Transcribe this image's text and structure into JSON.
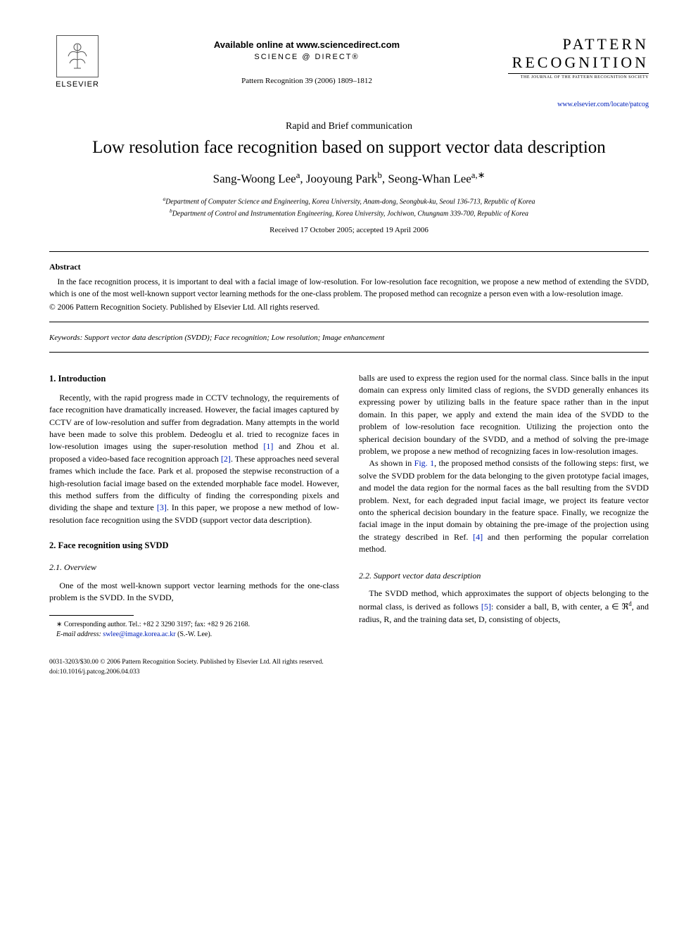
{
  "header": {
    "elsevier_label": "ELSEVIER",
    "available_online": "Available online at www.sciencedirect.com",
    "science_direct": "SCIENCE @ DIRECT®",
    "journal_ref": "Pattern Recognition 39 (2006) 1809–1812",
    "journal_title": "PATTERN RECOGNITION",
    "journal_subtitle": "THE JOURNAL OF THE PATTERN RECOGNITION SOCIETY",
    "journal_url": "www.elsevier.com/locate/patcog"
  },
  "communication_type": "Rapid and Brief communication",
  "title": "Low resolution face recognition based on support vector data description",
  "authors_html": "Sang-Woong Lee<sup>a</sup>, Jooyoung Park<sup>b</sup>, Seong-Whan Lee<sup>a,∗</sup>",
  "affiliations": {
    "a": "Department of Computer Science and Engineering, Korea University, Anam-dong, Seongbuk-ku, Seoul 136-713, Republic of Korea",
    "b": "Department of Control and Instrumentation Engineering, Korea University, Jochiwon, Chungnam 339-700, Republic of Korea"
  },
  "dates": "Received 17 October 2005; accepted 19 April 2006",
  "abstract": {
    "heading": "Abstract",
    "text": "In the face recognition process, it is important to deal with a facial image of low-resolution. For low-resolution face recognition, we propose a new method of extending the SVDD, which is one of the most well-known support vector learning methods for the one-class problem. The proposed method can recognize a person even with a low-resolution image.",
    "copyright": "© 2006 Pattern Recognition Society. Published by Elsevier Ltd. All rights reserved."
  },
  "keywords": {
    "label": "Keywords:",
    "text": "Support vector data description (SVDD); Face recognition; Low resolution; Image enhancement"
  },
  "sections": {
    "s1_heading": "1. Introduction",
    "s1_p1a": "Recently, with the rapid progress made in CCTV technology, the requirements of face recognition have dramatically increased. However, the facial images captured by CCTV are of low-resolution and suffer from degradation. Many attempts in the world have been made to solve this problem. Dedeoglu et al. tried to recognize faces in low-resolution images using the super-resolution method ",
    "ref1": "[1]",
    "s1_p1b": " and Zhou et al. proposed a video-based face recognition approach ",
    "ref2": "[2]",
    "s1_p1c": ". These approaches need several frames which include the face. Park et al. proposed the stepwise reconstruction of a high-resolution facial image based on the extended morphable face model. However, this method suffers from the difficulty of finding the corresponding pixels and dividing the shape and texture ",
    "ref3": "[3]",
    "s1_p1d": ". In this paper, we propose a new method of low-resolution face recognition using the SVDD (support vector data description).",
    "s2_heading": "2. Face recognition using SVDD",
    "s2_1_heading": "2.1. Overview",
    "s2_1_p1": "One of the most well-known support vector learning methods for the one-class problem is the SVDD. In the SVDD,",
    "col2_p1": "balls are used to express the region used for the normal class. Since balls in the input domain can express only limited class of regions, the SVDD generally enhances its expressing power by utilizing balls in the feature space rather than in the input domain. In this paper, we apply and extend the main idea of the SVDD to the problem of low-resolution face recognition. Utilizing the projection onto the spherical decision boundary of the SVDD, and a method of solving the pre-image problem, we propose a new method of recognizing faces in low-resolution images.",
    "col2_p2a": "As shown in ",
    "fig1": "Fig. 1",
    "col2_p2b": ", the proposed method consists of the following steps: first, we solve the SVDD problem for the data belonging to the given prototype facial images, and model the data region for the normal faces as the ball resulting from the SVDD problem. Next, for each degraded input facial image, we project its feature vector onto the spherical decision boundary in the feature space. Finally, we recognize the facial image in the input domain by obtaining the pre-image of the projection using the strategy described in Ref. ",
    "ref4": "[4]",
    "col2_p2c": " and then performing the popular correlation method.",
    "s2_2_heading": "2.2. Support vector data description",
    "s2_2_p1a": "The SVDD method, which approximates the support of objects belonging to the normal class, is derived as follows ",
    "ref5": "[5]",
    "s2_2_p1b": ": consider a ball, B, with center, a ∈ ℜ",
    "s2_2_sup": "d",
    "s2_2_p1c": ", and radius, R, and the training data set, D, consisting of objects,"
  },
  "footnote": {
    "corr": "∗ Corresponding author. Tel.: +82 2 3290 3197; fax: +82 9 26 2168.",
    "email_label": "E-mail address:",
    "email": "swlee@image.korea.ac.kr",
    "email_who": "(S.-W. Lee)."
  },
  "footer": {
    "line1": "0031-3203/$30.00 © 2006 Pattern Recognition Society. Published by Elsevier Ltd. All rights reserved.",
    "line2": "doi:10.1016/j.patcog.2006.04.033"
  },
  "colors": {
    "link": "#0020bb",
    "text": "#000000",
    "background": "#ffffff"
  }
}
